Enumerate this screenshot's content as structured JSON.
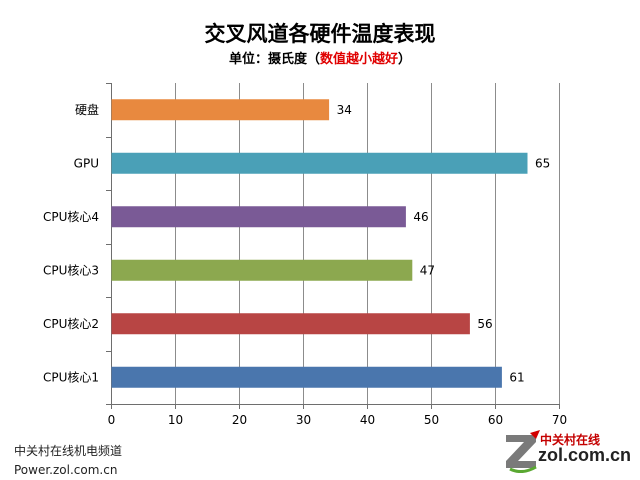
{
  "chart_data": {
    "type": "bar",
    "orientation": "horizontal",
    "title": "交叉风道各硬件温度表现",
    "subtitle_prefix": "单位：摄氏度（",
    "subtitle_highlight": "数值越小越好",
    "subtitle_suffix": "）",
    "categories": [
      "硬盘",
      "GPU",
      "CPU核心4",
      "CPU核心3",
      "CPU核心2",
      "CPU核心1"
    ],
    "values": [
      34,
      65,
      46,
      47,
      56,
      61
    ],
    "colors": [
      "#e8893f",
      "#4aa0b7",
      "#7a5a96",
      "#8ca84f",
      "#b84544",
      "#4a76ad"
    ],
    "xlim": [
      0,
      70
    ],
    "xticks": [
      0,
      10,
      20,
      30,
      40,
      50,
      60,
      70
    ],
    "grid": true,
    "legend": "none"
  },
  "footer": {
    "line1": "中关村在线机电频道",
    "line2": "Power.zol.com.cn"
  },
  "logo": {
    "cn": "中关村在线",
    "en": "zol.com.cn"
  }
}
